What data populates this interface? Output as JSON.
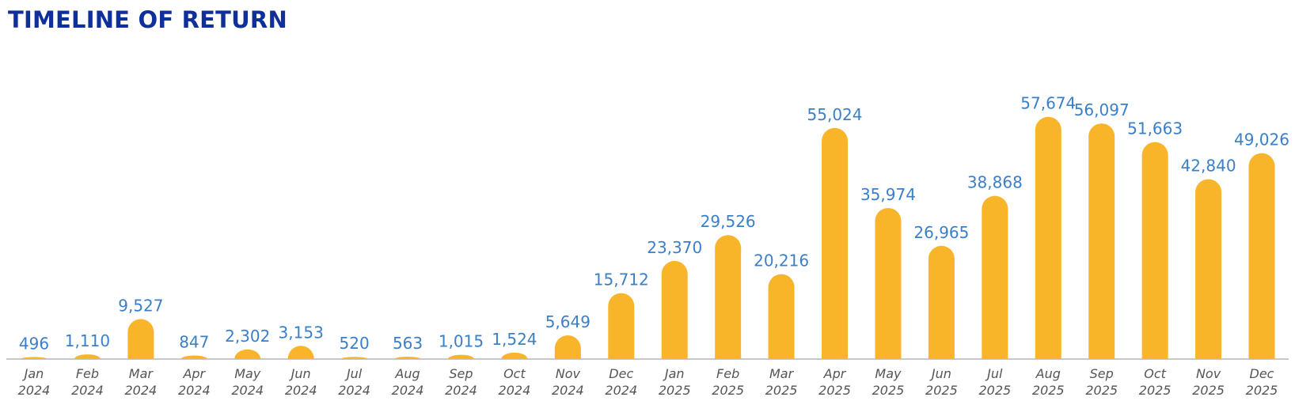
{
  "title": "TIMELINE OF RETURN",
  "colors": {
    "title": "#0f2f9a",
    "bar": "#f9b52a",
    "value_label": "#3a7fc7",
    "tick_label": "#555555",
    "axis": "#c8c8c8"
  },
  "chart_data": {
    "type": "bar",
    "title": "TIMELINE OF RETURN",
    "xlabel": "",
    "ylabel": "",
    "grid": false,
    "ylim": [
      0,
      58000
    ],
    "categories": [
      "Jan 2024",
      "Feb 2024",
      "Mar 2024",
      "Apr 2024",
      "May 2024",
      "Jun 2024",
      "Jul 2024",
      "Aug 2024",
      "Sep 2024",
      "Oct 2024",
      "Nov 2024",
      "Dec 2024",
      "Jan 2025",
      "Feb 2025",
      "Mar 2025",
      "Apr 2025",
      "May 2025",
      "Jun 2025",
      "Jul 2025",
      "Aug 2025",
      "Sep 2025",
      "Oct 2025",
      "Nov 2025",
      "Dec 2025"
    ],
    "values": [
      496,
      1110,
      9527,
      847,
      2302,
      3153,
      520,
      563,
      1015,
      1524,
      5649,
      15712,
      23370,
      29526,
      20216,
      55024,
      35974,
      26965,
      38868,
      57674,
      56097,
      51663,
      42840,
      49026
    ],
    "value_labels": [
      "496",
      "1,110",
      "9,527",
      "847",
      "2,302",
      "3,153",
      "520",
      "563",
      "1,015",
      "1,524",
      "5,649",
      "15,712",
      "23,370",
      "29,526",
      "20,216",
      "55,024",
      "35,974",
      "26,965",
      "38,868",
      "57,674",
      "56,097",
      "51,663",
      "42,840",
      "49,026"
    ]
  }
}
